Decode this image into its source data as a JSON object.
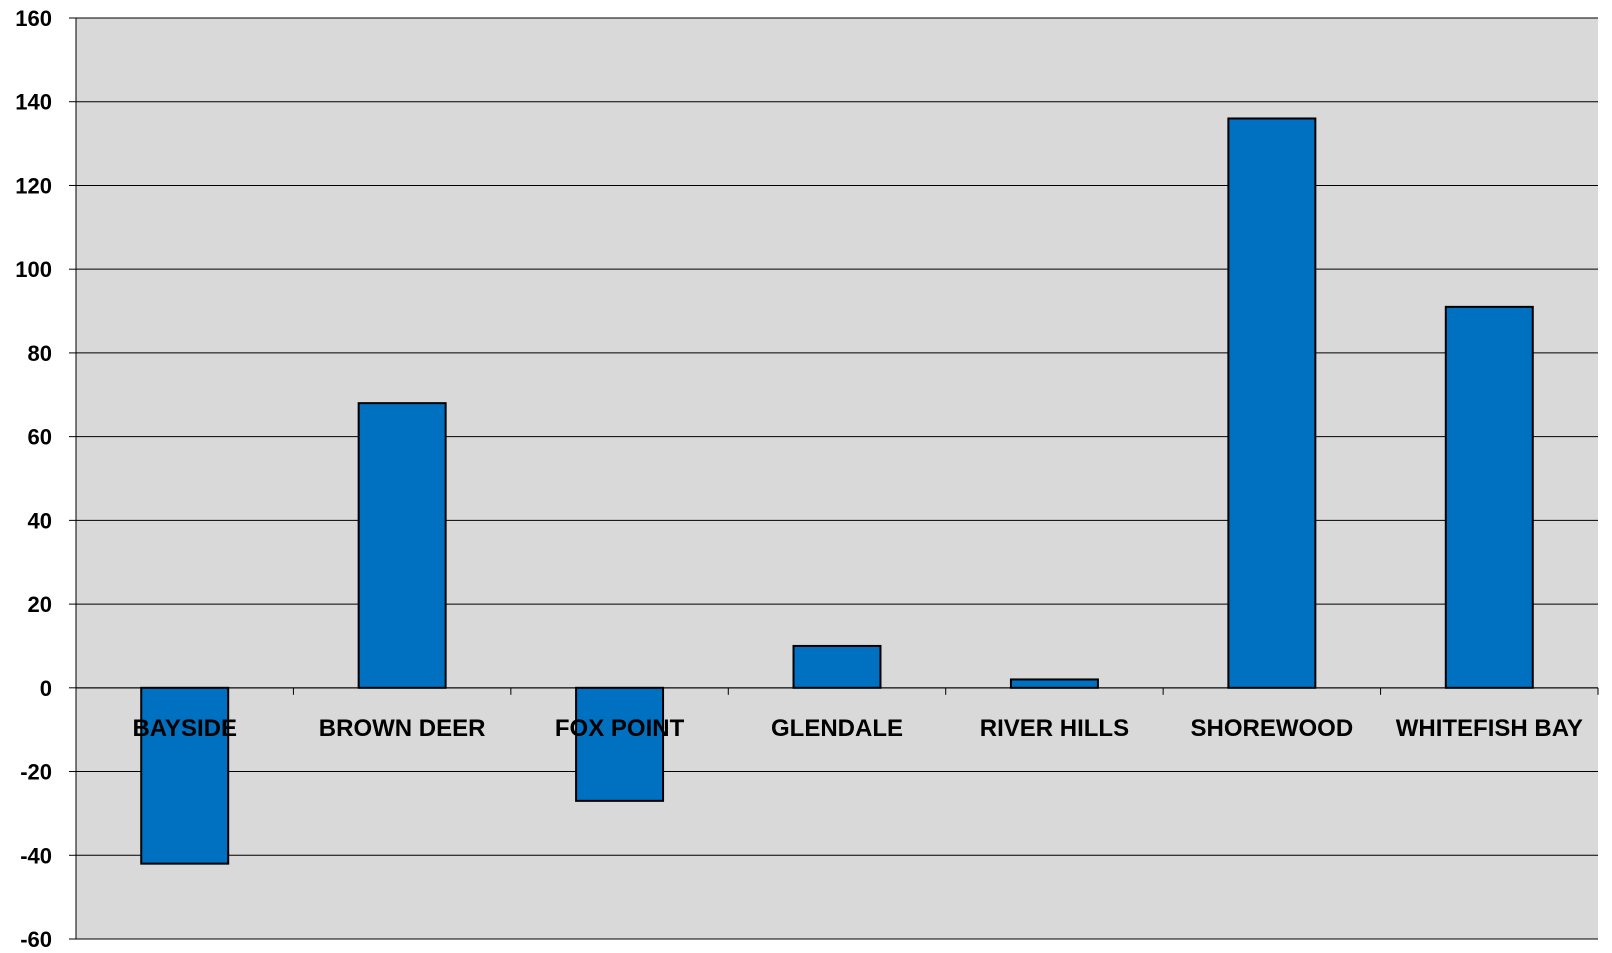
{
  "chart_data": {
    "type": "bar",
    "categories": [
      "BAYSIDE",
      "BROWN DEER",
      "FOX POINT",
      "GLENDALE",
      "RIVER HILLS",
      "SHOREWOOD",
      "WHITEFISH BAY"
    ],
    "values": [
      -42,
      68,
      -27,
      10,
      2,
      136,
      91
    ],
    "title": "",
    "xlabel": "",
    "ylabel": "",
    "ylim": [
      -60,
      160
    ],
    "yticks": [
      160,
      140,
      120,
      100,
      80,
      60,
      40,
      20,
      0,
      -20,
      -40,
      -60
    ],
    "ytick_labels": [
      "160",
      "140",
      "120",
      "100",
      "80",
      "60",
      "40",
      "20",
      "0",
      "-20",
      "-40",
      "-60"
    ],
    "grid": true,
    "legend": "none",
    "colors": {
      "bar": "#0070C0",
      "bar_border": "#000000",
      "plot_background": "#D9D9D9",
      "gridline": "#000000"
    }
  }
}
